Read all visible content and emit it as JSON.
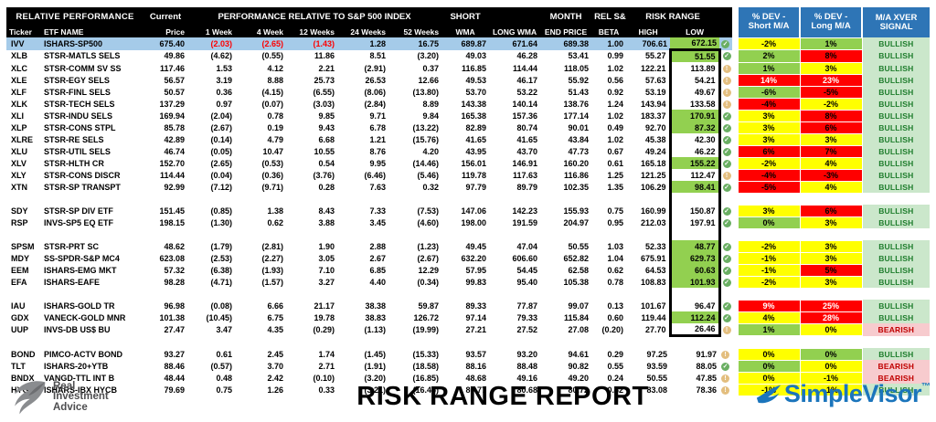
{
  "header": {
    "relative_performance": "RELATIVE PERFORMANCE",
    "current": "Current",
    "perf_rel": "PERFORMANCE RELATIVE TO S&P 500 INDEX",
    "ticker": "Ticker",
    "etf_name": "ETF NAME",
    "price": "Price",
    "weeks": [
      "1 Week",
      "4 Week",
      "12 Weeks",
      "24 Weeks",
      "52 Weeks"
    ],
    "short": "SHORT",
    "wma": "WMA",
    "long_wma": "LONG WMA",
    "month": "MONTH",
    "end_price": "END PRICE",
    "rel_sp": "REL S&P",
    "beta": "BETA",
    "risk_range": "RISK RANGE",
    "high": "HIGH",
    "low": "LOW",
    "dev_short": [
      "% DEV -",
      "Short M/A"
    ],
    "dev_long": [
      "% DEV -",
      "Long M/A"
    ],
    "xver": [
      "M/A XVER",
      "SIGNAL"
    ]
  },
  "colors": {
    "header_bg": "#000000",
    "dev_header_blue": "#2E75B6",
    "row_highlight_blue": "#A5CBE9",
    "green": "#92D050",
    "yellow": "#FFFF00",
    "red": "#FF0000",
    "bullish_bg": "#CBE7CB",
    "bullish_text": "#1E7D2C",
    "bearish_bg": "#F7CBCE",
    "bearish_text": "#C00000",
    "check_icon": "#69AE62",
    "warn_icon": "#E3BE7E",
    "brand_blue": "#1B75BC",
    "ria_gray": "#4D4D4F"
  },
  "rows": [
    {
      "ticker": "IVV",
      "name": "ISHARS-SP500",
      "price": "675.40",
      "w1": "(2.03)",
      "w4": "(2.65)",
      "w12": "(1.43)",
      "w24": "1.28",
      "w52": "16.75",
      "swma": "689.87",
      "lwma": "671.64",
      "mend": "689.38",
      "beta": "1.00",
      "high": "706.61",
      "low": "672.15",
      "lg": true,
      "icon": "check",
      "devS": "-2%",
      "dsc": "y",
      "devL": "1%",
      "dlc": "g",
      "signal": "BULLISH",
      "hl": true,
      "nr": true,
      "box": null
    },
    {
      "ticker": "XLB",
      "name": "STSR-MATLS SELS",
      "price": "49.86",
      "w1": "(4.62)",
      "w4": "(0.55)",
      "w12": "11.86",
      "w24": "8.51",
      "w52": "(3.20)",
      "swma": "49.03",
      "lwma": "46.28",
      "mend": "53.41",
      "beta": "0.99",
      "high": "55.27",
      "low": "51.55",
      "lg": true,
      "icon": "check",
      "devS": "2%",
      "dsc": "g",
      "devL": "8%",
      "dlc": "r",
      "signal": "BULLISH",
      "box": "top"
    },
    {
      "ticker": "XLC",
      "name": "STSR-COMM SV SS",
      "price": "117.46",
      "w1": "1.53",
      "w4": "4.12",
      "w12": "2.21",
      "w24": "(2.91)",
      "w52": "0.37",
      "swma": "116.85",
      "lwma": "114.44",
      "mend": "118.05",
      "beta": "1.02",
      "high": "122.21",
      "low": "113.89",
      "lg": false,
      "icon": "warn",
      "devS": "1%",
      "dsc": "g",
      "devL": "3%",
      "dlc": "y",
      "signal": "BULLISH",
      "box": "mid"
    },
    {
      "ticker": "XLE",
      "name": "STSR-EGY SELS",
      "price": "56.57",
      "w1": "3.19",
      "w4": "8.88",
      "w12": "25.73",
      "w24": "26.53",
      "w52": "12.66",
      "swma": "49.53",
      "lwma": "46.17",
      "mend": "55.92",
      "beta": "0.56",
      "high": "57.63",
      "low": "54.21",
      "lg": false,
      "icon": "warn",
      "devS": "14%",
      "dsc": "rw",
      "devL": "23%",
      "dlc": "rw",
      "signal": "BULLISH",
      "box": "mid"
    },
    {
      "ticker": "XLF",
      "name": "STSR-FINL SELS",
      "price": "50.57",
      "w1": "0.36",
      "w4": "(4.15)",
      "w12": "(6.55)",
      "w24": "(8.06)",
      "w52": "(13.80)",
      "swma": "53.70",
      "lwma": "53.22",
      "mend": "51.43",
      "beta": "0.92",
      "high": "53.19",
      "low": "49.67",
      "lg": false,
      "icon": "warn",
      "devS": "-6%",
      "dsc": "g",
      "devL": "-5%",
      "dlc": "r",
      "signal": "BULLISH",
      "box": "mid"
    },
    {
      "ticker": "XLK",
      "name": "STSR-TECH SELS",
      "price": "137.29",
      "w1": "0.97",
      "w4": "(0.07)",
      "w12": "(3.03)",
      "w24": "(2.84)",
      "w52": "8.89",
      "swma": "143.38",
      "lwma": "140.14",
      "mend": "138.76",
      "beta": "1.24",
      "high": "143.94",
      "low": "133.58",
      "lg": false,
      "icon": "warn",
      "devS": "-4%",
      "dsc": "r",
      "devL": "-2%",
      "dlc": "y",
      "signal": "BULLISH",
      "box": "mid"
    },
    {
      "ticker": "XLI",
      "name": "STSR-INDU SELS",
      "price": "169.94",
      "w1": "(2.04)",
      "w4": "0.78",
      "w12": "9.85",
      "w24": "9.71",
      "w52": "9.84",
      "swma": "165.38",
      "lwma": "157.36",
      "mend": "177.14",
      "beta": "1.02",
      "high": "183.37",
      "low": "170.91",
      "lg": true,
      "icon": "check",
      "devS": "3%",
      "dsc": "y",
      "devL": "8%",
      "dlc": "r",
      "signal": "BULLISH",
      "box": "mid"
    },
    {
      "ticker": "XLP",
      "name": "STSR-CONS STPL",
      "price": "85.78",
      "w1": "(2.67)",
      "w4": "0.19",
      "w12": "9.43",
      "w24": "6.78",
      "w52": "(13.22)",
      "swma": "82.89",
      "lwma": "80.74",
      "mend": "90.01",
      "beta": "0.49",
      "high": "92.70",
      "low": "87.32",
      "lg": true,
      "icon": "check",
      "devS": "3%",
      "dsc": "y",
      "devL": "6%",
      "dlc": "r",
      "signal": "BULLISH",
      "box": "mid"
    },
    {
      "ticker": "XLRE",
      "name": "STSR-RE SELS",
      "price": "42.89",
      "w1": "(0.14)",
      "w4": "4.79",
      "w12": "6.68",
      "w24": "1.21",
      "w52": "(15.76)",
      "swma": "41.65",
      "lwma": "41.65",
      "mend": "43.84",
      "beta": "1.02",
      "high": "45.38",
      "low": "42.30",
      "lg": false,
      "icon": "check",
      "devS": "3%",
      "dsc": "y",
      "devL": "3%",
      "dlc": "y",
      "signal": "BULLISH",
      "box": "mid"
    },
    {
      "ticker": "XLU",
      "name": "STSR-UTIL SELS",
      "price": "46.74",
      "w1": "(0.05)",
      "w4": "10.47",
      "w12": "10.55",
      "w24": "8.76",
      "w52": "4.20",
      "swma": "43.95",
      "lwma": "43.70",
      "mend": "47.73",
      "beta": "0.67",
      "high": "49.24",
      "low": "46.22",
      "lg": false,
      "icon": "check",
      "devS": "6%",
      "dsc": "r",
      "devL": "7%",
      "dlc": "r",
      "signal": "BULLISH",
      "box": "mid"
    },
    {
      "ticker": "XLV",
      "name": "STSR-HLTH CR",
      "price": "152.70",
      "w1": "(2.65)",
      "w4": "(0.53)",
      "w12": "0.54",
      "w24": "9.95",
      "w52": "(14.46)",
      "swma": "156.01",
      "lwma": "146.91",
      "mend": "160.20",
      "beta": "0.61",
      "high": "165.18",
      "low": "155.22",
      "lg": true,
      "icon": "check",
      "devS": "-2%",
      "dsc": "y",
      "devL": "4%",
      "dlc": "y",
      "signal": "BULLISH",
      "box": "mid"
    },
    {
      "ticker": "XLY",
      "name": "STSR-CONS DISCR",
      "price": "114.44",
      "w1": "(0.04)",
      "w4": "(0.36)",
      "w12": "(3.76)",
      "w24": "(6.46)",
      "w52": "(5.46)",
      "swma": "119.78",
      "lwma": "117.63",
      "mend": "116.86",
      "beta": "1.25",
      "high": "121.25",
      "low": "112.47",
      "lg": false,
      "icon": "warn",
      "devS": "-4%",
      "dsc": "r",
      "devL": "-3%",
      "dlc": "r",
      "signal": "BULLISH",
      "box": "mid"
    },
    {
      "ticker": "XTN",
      "name": "STSR-SP TRANSPT",
      "price": "92.99",
      "w1": "(7.12)",
      "w4": "(9.71)",
      "w12": "0.28",
      "w24": "7.63",
      "w52": "0.32",
      "swma": "97.79",
      "lwma": "89.79",
      "mend": "102.35",
      "beta": "1.35",
      "high": "106.29",
      "low": "98.41",
      "lg": true,
      "icon": "check",
      "devS": "-5%",
      "dsc": "r",
      "devL": "4%",
      "dlc": "y",
      "signal": "BULLISH",
      "box": "mid"
    },
    {
      "sep": true,
      "box": "mid"
    },
    {
      "ticker": "SDY",
      "name": "STSR-SP DIV ETF",
      "price": "151.45",
      "w1": "(0.85)",
      "w4": "1.38",
      "w12": "8.43",
      "w24": "7.33",
      "w52": "(7.53)",
      "swma": "147.06",
      "lwma": "142.23",
      "mend": "155.93",
      "beta": "0.75",
      "high": "160.99",
      "low": "150.87",
      "lg": false,
      "icon": "check",
      "devS": "3%",
      "dsc": "y",
      "devL": "6%",
      "dlc": "r",
      "signal": "BULLISH",
      "box": "mid"
    },
    {
      "ticker": "RSP",
      "name": "INVS-SP5 EQ ETF",
      "price": "198.15",
      "w1": "(1.30)",
      "w4": "0.62",
      "w12": "3.88",
      "w24": "3.45",
      "w52": "(4.60)",
      "swma": "198.00",
      "lwma": "191.59",
      "mend": "204.97",
      "beta": "0.95",
      "high": "212.03",
      "low": "197.91",
      "lg": false,
      "icon": "check",
      "devS": "0%",
      "dsc": "g",
      "devL": "3%",
      "dlc": "y",
      "signal": "BULLISH",
      "box": "mid"
    },
    {
      "sep": true,
      "box": "mid"
    },
    {
      "ticker": "SPSM",
      "name": "STSR-PRT SC",
      "price": "48.62",
      "w1": "(1.79)",
      "w4": "(2.81)",
      "w12": "1.90",
      "w24": "2.88",
      "w52": "(1.23)",
      "swma": "49.45",
      "lwma": "47.04",
      "mend": "50.55",
      "beta": "1.03",
      "high": "52.33",
      "low": "48.77",
      "lg": true,
      "icon": "check",
      "devS": "-2%",
      "dsc": "y",
      "devL": "3%",
      "dlc": "y",
      "signal": "BULLISH",
      "box": "mid"
    },
    {
      "ticker": "MDY",
      "name": "SS-SPDR-S&P MC4",
      "price": "623.08",
      "w1": "(2.53)",
      "w4": "(2.27)",
      "w12": "3.05",
      "w24": "2.67",
      "w52": "(2.67)",
      "swma": "632.20",
      "lwma": "606.60",
      "mend": "652.82",
      "beta": "1.04",
      "high": "675.91",
      "low": "629.73",
      "lg": true,
      "icon": "check",
      "devS": "-1%",
      "dsc": "y",
      "devL": "3%",
      "dlc": "y",
      "signal": "BULLISH",
      "box": "mid"
    },
    {
      "ticker": "EEM",
      "name": "ISHARS-EMG MKT",
      "price": "57.32",
      "w1": "(6.38)",
      "w4": "(1.93)",
      "w12": "7.10",
      "w24": "6.85",
      "w52": "12.29",
      "swma": "57.95",
      "lwma": "54.45",
      "mend": "62.58",
      "beta": "0.62",
      "high": "64.53",
      "low": "60.63",
      "lg": true,
      "icon": "check",
      "devS": "-1%",
      "dsc": "y",
      "devL": "5%",
      "dlc": "r",
      "signal": "BULLISH",
      "box": "mid"
    },
    {
      "ticker": "EFA",
      "name": "ISHARS-EAFE",
      "price": "98.28",
      "w1": "(4.71)",
      "w4": "(1.57)",
      "w12": "3.27",
      "w24": "4.40",
      "w52": "(0.34)",
      "swma": "99.83",
      "lwma": "95.40",
      "mend": "105.38",
      "beta": "0.78",
      "high": "108.83",
      "low": "101.93",
      "lg": true,
      "icon": "check",
      "devS": "-2%",
      "dsc": "y",
      "devL": "3%",
      "dlc": "y",
      "signal": "BULLISH",
      "box": "mid"
    },
    {
      "sep": true,
      "box": "mid"
    },
    {
      "ticker": "IAU",
      "name": "ISHARS-GOLD TR",
      "price": "96.98",
      "w1": "(0.08)",
      "w4": "6.66",
      "w12": "21.17",
      "w24": "38.38",
      "w52": "59.87",
      "swma": "89.33",
      "lwma": "77.87",
      "mend": "99.07",
      "beta": "0.13",
      "high": "101.67",
      "low": "96.47",
      "lg": false,
      "icon": "check",
      "devS": "9%",
      "dsc": "rw",
      "devL": "25%",
      "dlc": "rw",
      "signal": "BULLISH",
      "box": "mid"
    },
    {
      "ticker": "GDX",
      "name": "VANECK-GOLD MNR",
      "price": "101.38",
      "w1": "(10.45)",
      "w4": "6.75",
      "w12": "19.78",
      "w24": "38.83",
      "w52": "126.72",
      "swma": "97.14",
      "lwma": "79.33",
      "mend": "115.84",
      "beta": "0.60",
      "high": "119.44",
      "low": "112.24",
      "lg": true,
      "icon": "check",
      "devS": "4%",
      "dsc": "y",
      "devL": "28%",
      "dlc": "rw",
      "signal": "BULLISH",
      "box": "mid"
    },
    {
      "ticker": "UUP",
      "name": "INVS-DB US$ BU",
      "price": "27.47",
      "w1": "3.47",
      "w4": "4.35",
      "w12": "(0.29)",
      "w24": "(1.13)",
      "w52": "(19.99)",
      "swma": "27.21",
      "lwma": "27.52",
      "mend": "27.08",
      "beta": "(0.20)",
      "high": "27.70",
      "low": "26.46",
      "lg": false,
      "icon": "warn",
      "devS": "1%",
      "dsc": "g",
      "devL": "0%",
      "dlc": "y",
      "signal": "BEARISH",
      "box": "bottom"
    },
    {
      "sep": true,
      "box": null
    },
    {
      "ticker": "BOND",
      "name": "PIMCO-ACTV BOND",
      "price": "93.27",
      "w1": "0.61",
      "w4": "2.45",
      "w12": "1.74",
      "w24": "(1.45)",
      "w52": "(15.33)",
      "swma": "93.57",
      "lwma": "93.20",
      "mend": "94.61",
      "beta": "0.29",
      "high": "97.25",
      "low": "91.97",
      "lg": false,
      "icon": "warn",
      "devS": "0%",
      "dsc": "y",
      "devL": "0%",
      "dlc": "g",
      "signal": "BULLISH",
      "box": null
    },
    {
      "ticker": "TLT",
      "name": "ISHARS-20+YTB",
      "price": "88.46",
      "w1": "(0.57)",
      "w4": "3.70",
      "w12": "2.71",
      "w24": "(1.91)",
      "w52": "(18.58)",
      "swma": "88.16",
      "lwma": "88.48",
      "mend": "90.82",
      "beta": "0.55",
      "high": "93.59",
      "low": "88.05",
      "lg": false,
      "icon": "check",
      "devS": "0%",
      "dsc": "g",
      "devL": "0%",
      "dlc": "y",
      "signal": "BEARISH",
      "box": null
    },
    {
      "ticker": "BNDX",
      "name": "VANGD-TTL INT B",
      "price": "48.44",
      "w1": "0.48",
      "w4": "2.42",
      "w12": "(0.10)",
      "w24": "(3.20)",
      "w52": "(16.85)",
      "swma": "48.68",
      "lwma": "49.16",
      "mend": "49.20",
      "beta": "0.24",
      "high": "50.55",
      "low": "47.85",
      "lg": false,
      "icon": "warn",
      "devS": "0%",
      "dsc": "y",
      "devL": "-1%",
      "dlc": "y",
      "signal": "BEARISH",
      "box": null
    },
    {
      "ticker": "HYG",
      "name": "ISHARS-IBX HYCB",
      "price": "79.69",
      "w1": "0.75",
      "w4": "1.26",
      "w12": "0.33",
      "w24": "(3.21)",
      "w52": "(16.45)",
      "swma": "80.77",
      "lwma": "80.68",
      "mend": "80.72",
      "beta": "0.42",
      "high": "83.08",
      "low": "78.36",
      "lg": false,
      "icon": "warn",
      "devS": "-1%",
      "dsc": "y",
      "devL": "-1%",
      "dlc": "y",
      "signal": "BULLISH",
      "box": null
    }
  ],
  "footer": {
    "title": "RISK RANGE REPORT",
    "ria_lines": [
      "Real",
      "Investment",
      "Advice"
    ],
    "simplevisor": "SimpleVisor",
    "tm": "™"
  }
}
